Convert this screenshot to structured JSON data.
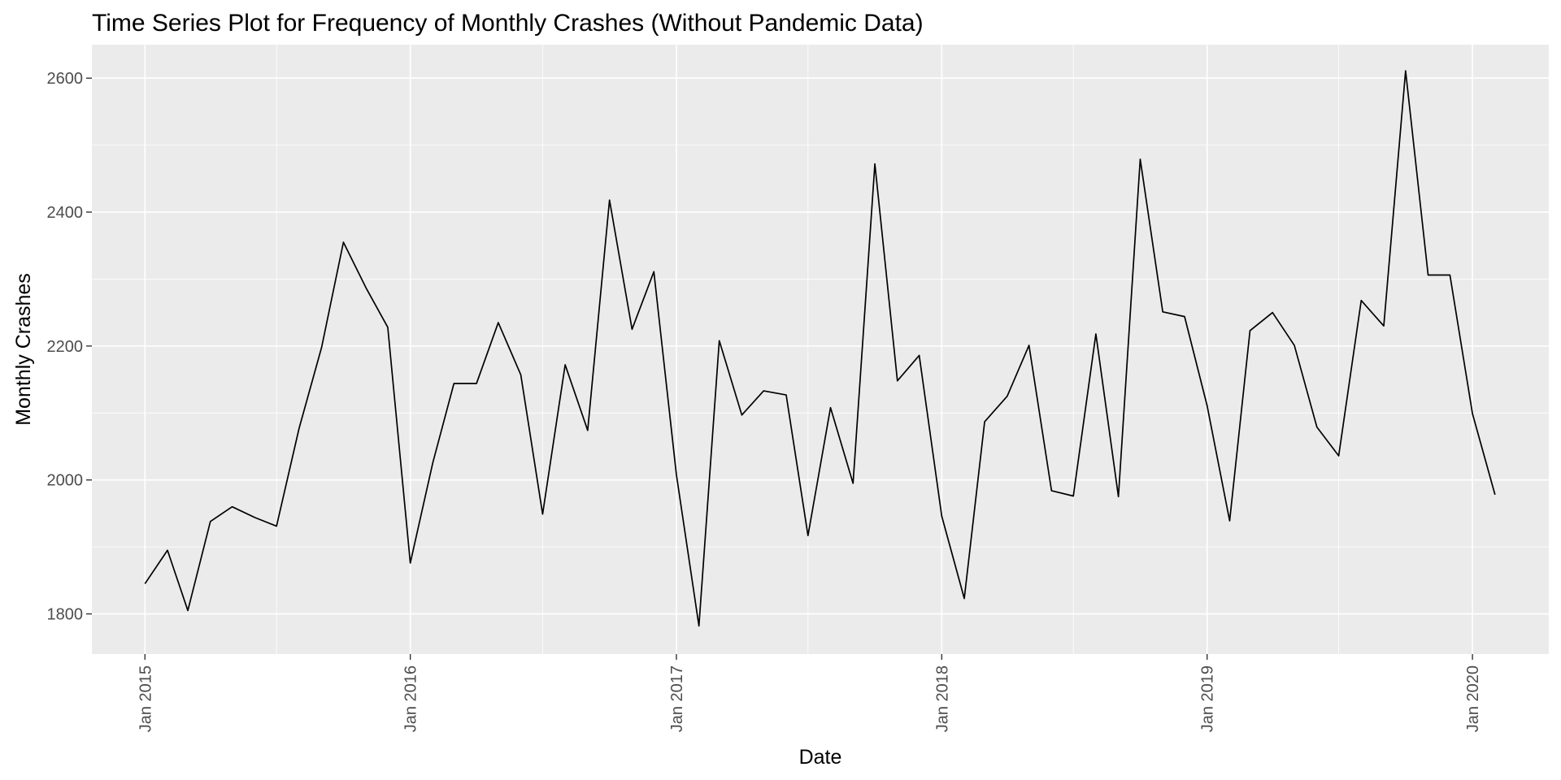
{
  "chart_data": {
    "type": "line",
    "title": "Time Series Plot for Frequency of Monthly Crashes (Without Pandemic Data)",
    "xlabel": "Date",
    "ylabel": "Monthly Crashes",
    "x_axis": {
      "type": "date",
      "range": [
        "2014-10-20",
        "2020-04-15"
      ],
      "major_ticks": [
        {
          "date": "2015-01-01",
          "label": "Jan 2015"
        },
        {
          "date": "2016-01-01",
          "label": "Jan 2016"
        },
        {
          "date": "2017-01-01",
          "label": "Jan 2017"
        },
        {
          "date": "2018-01-01",
          "label": "Jan 2018"
        },
        {
          "date": "2019-01-01",
          "label": "Jan 2019"
        },
        {
          "date": "2020-01-01",
          "label": "Jan 2020"
        }
      ],
      "minor_ticks": [
        "2015-07-01",
        "2016-07-01",
        "2017-07-01",
        "2018-07-01",
        "2019-07-01"
      ]
    },
    "y_axis": {
      "range": [
        1740,
        2650
      ],
      "major_ticks": [
        1800,
        2000,
        2200,
        2400,
        2600
      ],
      "minor_ticks": [
        1900,
        2100,
        2300,
        2500
      ]
    },
    "grid": true,
    "colors": {
      "panel_background": "#EBEBEB",
      "grid": "#FFFFFF",
      "line": "#000000",
      "tick_label": "#4D4D4D"
    },
    "series": [
      {
        "x": [
          "2015-01",
          "2015-02",
          "2015-03",
          "2015-04",
          "2015-05",
          "2015-06",
          "2015-07",
          "2015-08",
          "2015-09",
          "2015-10",
          "2015-11",
          "2015-12",
          "2016-01",
          "2016-02",
          "2016-03",
          "2016-04",
          "2016-05",
          "2016-06",
          "2016-07",
          "2016-08",
          "2016-09",
          "2016-10",
          "2016-11",
          "2016-12",
          "2017-01",
          "2017-02",
          "2017-03",
          "2017-04",
          "2017-05",
          "2017-06",
          "2017-07",
          "2017-08",
          "2017-09",
          "2017-10",
          "2017-11",
          "2017-12",
          "2018-01",
          "2018-02",
          "2018-03",
          "2018-04",
          "2018-05",
          "2018-06",
          "2018-07",
          "2018-08",
          "2018-09",
          "2018-10",
          "2018-11",
          "2018-12",
          "2019-01",
          "2019-02",
          "2019-03",
          "2019-04",
          "2019-05",
          "2019-06",
          "2019-07",
          "2019-08",
          "2019-09",
          "2019-10",
          "2019-11",
          "2019-12",
          "2020-01",
          "2020-02"
        ],
        "values": [
          1845,
          1895,
          1805,
          1938,
          1960,
          1944,
          1931,
          2077,
          2198,
          2355,
          2287,
          2228,
          1876,
          2026,
          2144,
          2144,
          2235,
          2157,
          1949,
          2172,
          2074,
          2418,
          2225,
          2311,
          2008,
          1782,
          2208,
          2097,
          2133,
          2127,
          1917,
          2108,
          1995,
          2472,
          2148,
          2186,
          1946,
          1823,
          2087,
          2125,
          2201,
          1984,
          1976,
          2218,
          1975,
          2479,
          2251,
          2244,
          2111,
          1939,
          2223,
          2250,
          2201,
          2079,
          2036,
          2268,
          2230,
          2611,
          2306,
          2306,
          2099,
          1978
        ]
      }
    ]
  }
}
